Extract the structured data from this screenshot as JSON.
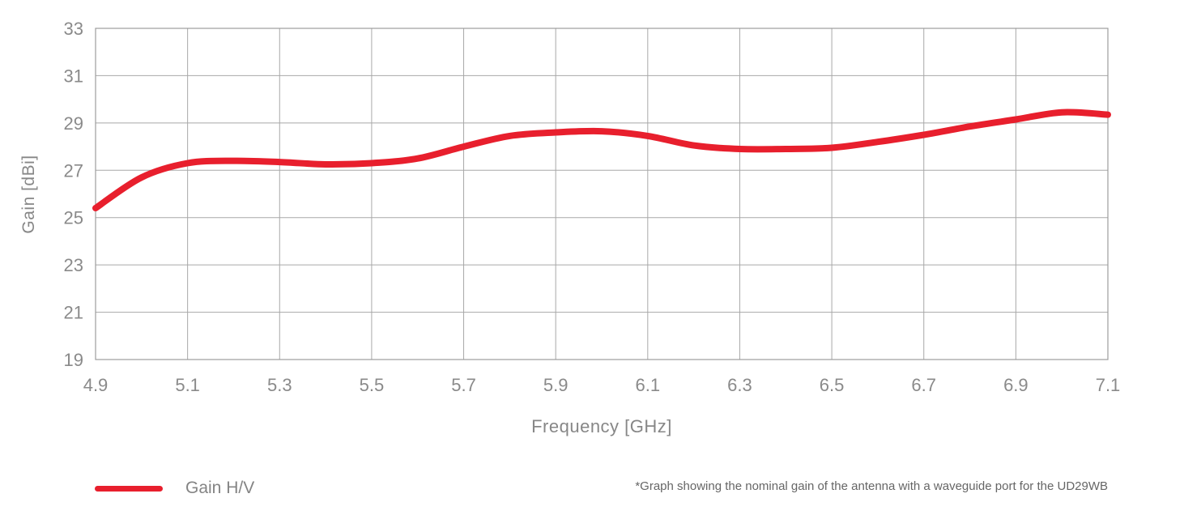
{
  "chart_data": {
    "type": "line",
    "title": "",
    "xlabel": "Frequency [GHz]",
    "ylabel": "Gain [dBi]",
    "xlim": [
      4.9,
      7.1
    ],
    "ylim": [
      19,
      33
    ],
    "grid": true,
    "x_tick_values": [
      4.9,
      5.1,
      5.3,
      5.5,
      5.7,
      5.9,
      6.1,
      6.3,
      6.5,
      6.7,
      6.9,
      7.1
    ],
    "x_tick_labels": [
      "4.9",
      "5.1",
      "5.3",
      "5.5",
      "5.7",
      "5.9",
      "6.1",
      "6.3",
      "6.5",
      "6.7",
      "6.9",
      "7.1"
    ],
    "y_tick_values": [
      19,
      21,
      23,
      25,
      27,
      29,
      31,
      33
    ],
    "y_tick_labels": [
      "19",
      "21",
      "23",
      "25",
      "27",
      "29",
      "31",
      "33"
    ],
    "legend_position": "bottom-left",
    "series": [
      {
        "name": "Gain H/V",
        "color": "#e81f2d",
        "x": [
          4.9,
          5.0,
          5.1,
          5.2,
          5.3,
          5.4,
          5.5,
          5.6,
          5.7,
          5.8,
          5.9,
          6.0,
          6.1,
          6.2,
          6.3,
          6.4,
          6.5,
          6.6,
          6.7,
          6.8,
          6.9,
          7.0,
          7.1
        ],
        "y": [
          25.4,
          26.7,
          27.3,
          27.4,
          27.35,
          27.25,
          27.3,
          27.5,
          28.0,
          28.45,
          28.6,
          28.65,
          28.45,
          28.05,
          27.9,
          27.9,
          27.95,
          28.2,
          28.5,
          28.85,
          29.15,
          29.45,
          29.35
        ]
      }
    ]
  },
  "axes": {
    "x_title": "Frequency [GHz]",
    "y_title": "Gain [dBi]"
  },
  "legend": {
    "label": "Gain H/V"
  },
  "footnote": "*Graph showing the nominal gain of the antenna with a waveguide port for the UD29WB",
  "colors": {
    "line": "#e81f2d",
    "grid": "#a8a8a8",
    "border": "#9c9c9c",
    "tick_text": "#8a8a8a",
    "axis_title_text": "#878787",
    "legend_text": "#848484",
    "footnote_text": "#666666"
  }
}
